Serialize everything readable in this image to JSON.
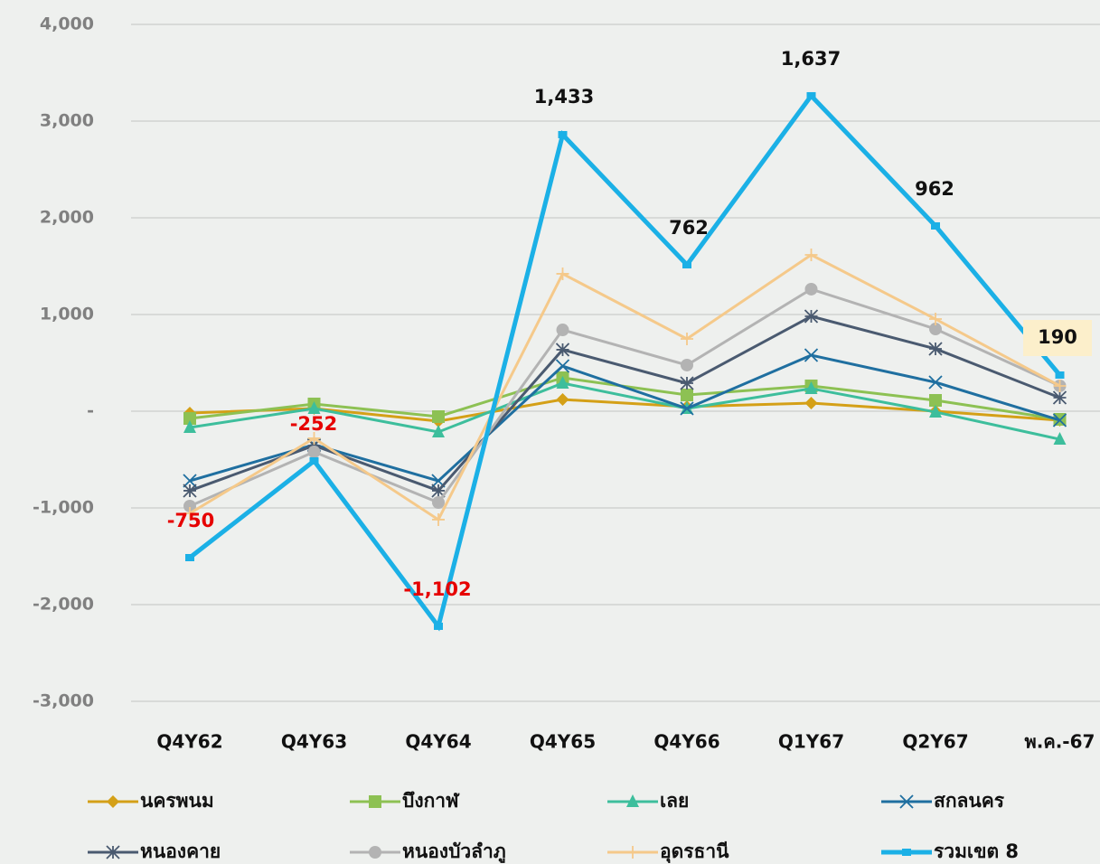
{
  "chart_data": {
    "type": "line",
    "categories": [
      "Q4Y62",
      "Q4Y63",
      "Q4Y64",
      "Q4Y65",
      "Q4Y66",
      "Q1Y67",
      "Q2Y67",
      "พ.ค.-67"
    ],
    "ylim": [
      -3000,
      4000
    ],
    "yticks": [
      {
        "value": -3000,
        "label": "-3,000"
      },
      {
        "value": -2000,
        "label": "-2,000"
      },
      {
        "value": -1000,
        "label": "-1,000"
      },
      {
        "value": 0,
        "label": "-"
      },
      {
        "value": 1000,
        "label": "1,000"
      },
      {
        "value": 2000,
        "label": "2,000"
      },
      {
        "value": 3000,
        "label": "3,000"
      },
      {
        "value": 4000,
        "label": "4,000"
      }
    ],
    "grid": true,
    "series": [
      {
        "name": "นครพนม",
        "color": "#d4a017",
        "marker": "diamond",
        "values": [
          -19,
          28,
          -103,
          121,
          47,
          84,
          0,
          -93
        ]
      },
      {
        "name": "บึงกาฬ",
        "color": "#8dc153",
        "marker": "square",
        "values": [
          -75,
          75,
          -56,
          346,
          168,
          262,
          112,
          -84
        ]
      },
      {
        "name": "เลย",
        "color": "#3dbe9c",
        "marker": "triangle",
        "values": [
          -168,
          28,
          -215,
          290,
          28,
          234,
          -9,
          -290
        ]
      },
      {
        "name": "สกลนคร",
        "color": "#1f6fa0",
        "marker": "x",
        "values": [
          -720,
          -346,
          -720,
          467,
          28,
          579,
          299,
          -93
        ]
      },
      {
        "name": "หนองคาย",
        "color": "#4a5a70",
        "marker": "star",
        "values": [
          -822,
          -355,
          -822,
          636,
          290,
          981,
          645,
          140
        ]
      },
      {
        "name": "หนองบัวลำภู",
        "color": "#b3b3b3",
        "marker": "circle",
        "values": [
          -981,
          -421,
          -944,
          841,
          477,
          1262,
          850,
          262
        ]
      },
      {
        "name": "อุดรธานี",
        "color": "#f5c98a",
        "marker": "plus",
        "values": [
          -1056,
          -280,
          -1121,
          1421,
          748,
          1617,
          953,
          262
        ]
      },
      {
        "name": "รวมเขต 8",
        "color": "#1bb0e6",
        "marker": "rect",
        "values": [
          -1514,
          -514,
          -2224,
          2860,
          1514,
          3262,
          1916,
          374
        ]
      }
    ],
    "annotations": [
      {
        "text": "-750",
        "color": "#e60000"
      },
      {
        "text": "-252",
        "color": "#e60000"
      },
      {
        "text": "-1,102",
        "color": "#e60000"
      },
      {
        "text": "1,433",
        "color": "#111111"
      },
      {
        "text": "762",
        "color": "#111111"
      },
      {
        "text": "1,637",
        "color": "#111111"
      },
      {
        "text": "962",
        "color": "#111111"
      },
      {
        "text": "190",
        "color": "#111111",
        "background": "#fcefcb"
      }
    ]
  }
}
